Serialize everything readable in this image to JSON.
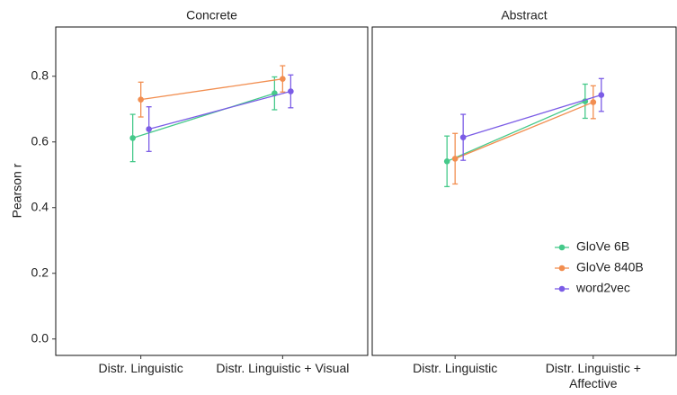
{
  "chart_data": [
    {
      "type": "errorbar-line",
      "title": "Concrete",
      "y_label": "Pearson r",
      "categories": [
        "Distr. Linguistic",
        "Distr. Linguistic + Visual"
      ],
      "ylim": [
        -0.05,
        0.95
      ],
      "yticks": [
        {
          "value": 0,
          "label": "0.0"
        },
        0.2,
        0.4,
        0.6,
        0.8
      ],
      "series": [
        {
          "color": "#45c98a",
          "values": [
            0.612,
            0.748
          ],
          "errors": [
            0.072,
            0.05
          ]
        },
        {
          "color": "#f28e50",
          "values": [
            0.729,
            0.792
          ],
          "errors": [
            0.053,
            0.04
          ]
        },
        {
          "color": "#7b5ce6",
          "values": [
            0.639,
            0.754
          ],
          "errors": [
            0.068,
            0.05
          ]
        }
      ]
    },
    {
      "type": "errorbar-line",
      "title": "Abstract",
      "categories": [
        "Distr. Linguistic",
        "Distr. Linguistic + Affective"
      ],
      "ylim": [
        -0.05,
        0.95
      ],
      "legend": "lower right",
      "series": [
        {
          "name": "GloVe 6B",
          "color": "#45c98a",
          "values": [
            0.541,
            0.724
          ],
          "errors": [
            0.077,
            0.052
          ]
        },
        {
          "name": "GloVe 840B",
          "color": "#f28e50",
          "values": [
            0.549,
            0.721
          ],
          "errors": [
            0.077,
            0.05
          ]
        },
        {
          "name": "word2vec",
          "color": "#7b5ce6",
          "values": [
            0.614,
            0.743
          ],
          "errors": [
            0.07,
            0.05
          ]
        }
      ]
    }
  ]
}
